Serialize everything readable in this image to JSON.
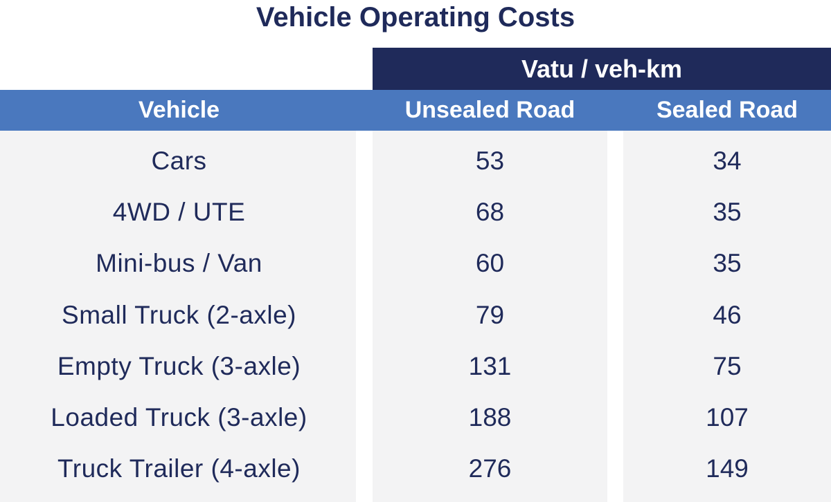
{
  "title": "Vehicle Operating Costs",
  "group_header": "Vatu / veh-km",
  "columns": {
    "vehicle": "Vehicle",
    "unsealed": "Unsealed Road",
    "sealed": "Sealed Road"
  },
  "rows": [
    {
      "vehicle": "Cars",
      "unsealed": "53",
      "sealed": "34"
    },
    {
      "vehicle": "4WD / UTE",
      "unsealed": "68",
      "sealed": "35"
    },
    {
      "vehicle": "Mini-bus / Van",
      "unsealed": "60",
      "sealed": "35"
    },
    {
      "vehicle": "Small Truck (2-axle)",
      "unsealed": "79",
      "sealed": "46"
    },
    {
      "vehicle": "Empty Truck (3-axle)",
      "unsealed": "131",
      "sealed": "75"
    },
    {
      "vehicle": "Loaded Truck (3-axle)",
      "unsealed": "188",
      "sealed": "107"
    },
    {
      "vehicle": "Truck Trailer (4-axle)",
      "unsealed": "276",
      "sealed": "149"
    }
  ],
  "colors": {
    "navy": "#1f2a5a",
    "header_blue": "#4a78be",
    "body_bg": "#f3f3f4"
  }
}
